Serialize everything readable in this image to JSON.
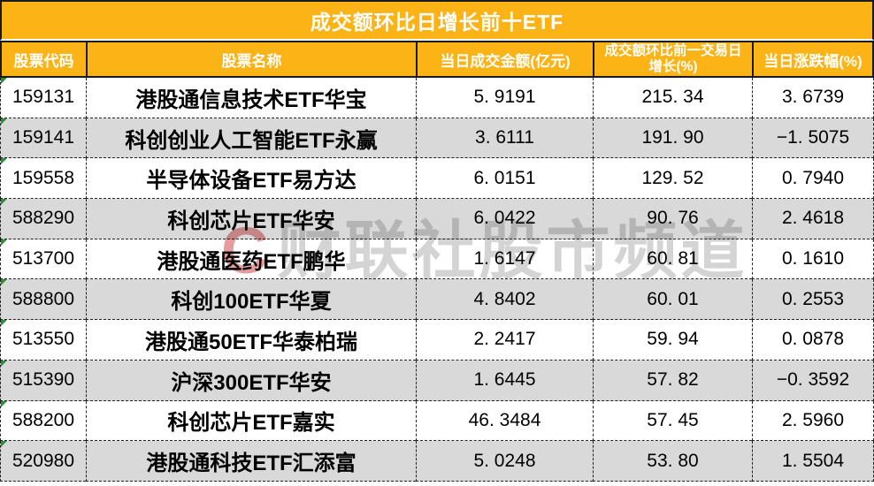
{
  "title": "成交额环比日增长前十ETF",
  "table": {
    "columns": [
      {
        "label": "股票代码"
      },
      {
        "label": "股票名称"
      },
      {
        "label": "当日成交金额(亿元)"
      },
      {
        "label": "成交额环比前一交易日\n增长(%)"
      },
      {
        "label": "当日涨跌幅(%)"
      }
    ],
    "rows": [
      {
        "code": "159131",
        "name": "港股通信息技术ETF华宝",
        "amount": "5. 9191",
        "growth": "215. 34",
        "change": "3. 6739"
      },
      {
        "code": "159141",
        "name": "科创创业人工智能ETF永赢",
        "amount": "3. 6111",
        "growth": "191. 90",
        "change": "−1. 5075"
      },
      {
        "code": "159558",
        "name": "半导体设备ETF易方达",
        "amount": "6. 0151",
        "growth": "129. 52",
        "change": "0. 7940"
      },
      {
        "code": "588290",
        "name": "科创芯片ETF华安",
        "amount": "6. 0422",
        "growth": "90. 76",
        "change": "2. 4618"
      },
      {
        "code": "513700",
        "name": "港股通医药ETF鹏华",
        "amount": "1. 6147",
        "growth": "60. 81",
        "change": "0. 1610"
      },
      {
        "code": "588800",
        "name": "科创100ETF华夏",
        "amount": "4. 8402",
        "growth": "60. 01",
        "change": "0. 2553"
      },
      {
        "code": "513550",
        "name": "港股通50ETF华泰柏瑞",
        "amount": "2. 2417",
        "growth": "59. 94",
        "change": "0. 0878"
      },
      {
        "code": "515390",
        "name": "沪深300ETF华安",
        "amount": "1. 6445",
        "growth": "57. 82",
        "change": "−0. 3592"
      },
      {
        "code": "588200",
        "name": "科创芯片ETF嘉实",
        "amount": "46. 3484",
        "growth": "57. 45",
        "change": "2. 5960"
      },
      {
        "code": "520980",
        "name": "港股通科技ETF汇添富",
        "amount": "5. 0248",
        "growth": "53. 80",
        "change": "1. 5504"
      }
    ]
  },
  "watermark": {
    "logo_letter": "C",
    "text": "财联社股市频道"
  },
  "colors": {
    "header_orange": "#FBB315",
    "row_alt_gray": "#D9D9D9",
    "header_text": "#FFFFFF",
    "body_text": "#000000",
    "border_dark": "#1A1A1A",
    "watermark_gray": "#D4D4D4",
    "watermark_red": "#E69C9C",
    "indicator_green": "#2A9235"
  },
  "chart_data": {
    "type": "table",
    "title": "成交额环比日增长前十ETF",
    "columns": [
      "股票代码",
      "股票名称",
      "当日成交金额(亿元)",
      "成交额环比前一交易日增长(%)",
      "当日涨跌幅(%)"
    ],
    "rows": [
      [
        "159131",
        "港股通信息技术ETF华宝",
        5.9191,
        215.34,
        3.6739
      ],
      [
        "159141",
        "科创创业人工智能ETF永赢",
        3.6111,
        191.9,
        -1.5075
      ],
      [
        "159558",
        "半导体设备ETF易方达",
        6.0151,
        129.52,
        0.794
      ],
      [
        "588290",
        "科创芯片ETF华安",
        6.0422,
        90.76,
        2.4618
      ],
      [
        "513700",
        "港股通医药ETF鹏华",
        1.6147,
        60.81,
        0.161
      ],
      [
        "588800",
        "科创100ETF华夏",
        4.8402,
        60.01,
        0.2553
      ],
      [
        "513550",
        "港股通50ETF华泰柏瑞",
        2.2417,
        59.94,
        0.0878
      ],
      [
        "515390",
        "沪深300ETF华安",
        1.6445,
        57.82,
        -0.3592
      ],
      [
        "588200",
        "科创芯片ETF嘉实",
        46.3484,
        57.45,
        2.596
      ],
      [
        "520980",
        "港股通科技ETF汇添富",
        5.0248,
        53.8,
        1.5504
      ]
    ]
  }
}
